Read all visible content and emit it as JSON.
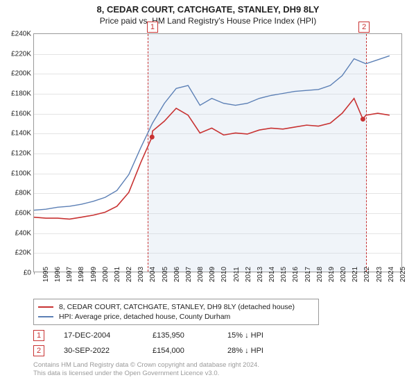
{
  "title": {
    "address": "8, CEDAR COURT, CATCHGATE, STANLEY, DH9 8LY",
    "subtitle": "Price paid vs. HM Land Registry's House Price Index (HPI)",
    "fontsize_main": 13,
    "fontsize_sub": 12
  },
  "chart": {
    "type": "line",
    "background_color": "#ffffff",
    "border_color": "#999999",
    "grid_color": "#e4e4e4",
    "shaded_fill": "rgba(200,215,235,0.28)",
    "shaded_border_color": "#c83232",
    "ylim": [
      0,
      240000
    ],
    "ytick_step": 20000,
    "y_ticks": [
      "£0",
      "£20K",
      "£40K",
      "£60K",
      "£80K",
      "£100K",
      "£120K",
      "£140K",
      "£160K",
      "£180K",
      "£200K",
      "£220K",
      "£240K"
    ],
    "xlim_years": [
      1995,
      2026
    ],
    "x_ticks": [
      1995,
      1996,
      1997,
      1998,
      1999,
      2000,
      2001,
      2002,
      2003,
      2004,
      2005,
      2006,
      2007,
      2008,
      2009,
      2010,
      2011,
      2012,
      2013,
      2014,
      2015,
      2016,
      2017,
      2018,
      2019,
      2020,
      2021,
      2022,
      2023,
      2024,
      2025
    ],
    "label_fontsize": 10,
    "series": [
      {
        "name": "property",
        "label": "8, CEDAR COURT, CATCHGATE, STANLEY, DH9 8LY (detached house)",
        "color": "#c83232",
        "line_width": 1.6,
        "points": [
          [
            1995,
            55000
          ],
          [
            1996,
            54000
          ],
          [
            1997,
            54000
          ],
          [
            1998,
            53000
          ],
          [
            1999,
            55000
          ],
          [
            2000,
            57000
          ],
          [
            2001,
            60000
          ],
          [
            2002,
            66000
          ],
          [
            2003,
            80000
          ],
          [
            2004,
            110000
          ],
          [
            2004.96,
            135950
          ],
          [
            2005,
            142000
          ],
          [
            2006,
            152000
          ],
          [
            2007,
            165000
          ],
          [
            2008,
            158000
          ],
          [
            2009,
            140000
          ],
          [
            2010,
            145000
          ],
          [
            2011,
            138000
          ],
          [
            2012,
            140000
          ],
          [
            2013,
            139000
          ],
          [
            2014,
            143000
          ],
          [
            2015,
            145000
          ],
          [
            2016,
            144000
          ],
          [
            2017,
            146000
          ],
          [
            2018,
            148000
          ],
          [
            2019,
            147000
          ],
          [
            2020,
            150000
          ],
          [
            2021,
            160000
          ],
          [
            2022,
            175000
          ],
          [
            2022.75,
            154000
          ],
          [
            2023,
            158000
          ],
          [
            2024,
            160000
          ],
          [
            2025,
            158000
          ]
        ]
      },
      {
        "name": "hpi",
        "label": "HPI: Average price, detached house, County Durham",
        "color": "#5b7fb5",
        "line_width": 1.4,
        "points": [
          [
            1995,
            62000
          ],
          [
            1996,
            63000
          ],
          [
            1997,
            65000
          ],
          [
            1998,
            66000
          ],
          [
            1999,
            68000
          ],
          [
            2000,
            71000
          ],
          [
            2001,
            75000
          ],
          [
            2002,
            82000
          ],
          [
            2003,
            98000
          ],
          [
            2004,
            125000
          ],
          [
            2005,
            150000
          ],
          [
            2006,
            170000
          ],
          [
            2007,
            185000
          ],
          [
            2008,
            188000
          ],
          [
            2009,
            168000
          ],
          [
            2010,
            175000
          ],
          [
            2011,
            170000
          ],
          [
            2012,
            168000
          ],
          [
            2013,
            170000
          ],
          [
            2014,
            175000
          ],
          [
            2015,
            178000
          ],
          [
            2016,
            180000
          ],
          [
            2017,
            182000
          ],
          [
            2018,
            183000
          ],
          [
            2019,
            184000
          ],
          [
            2020,
            188000
          ],
          [
            2021,
            198000
          ],
          [
            2022,
            215000
          ],
          [
            2023,
            210000
          ],
          [
            2024,
            214000
          ],
          [
            2025,
            218000
          ]
        ]
      }
    ],
    "markers": [
      {
        "id": "1",
        "year": 2004.96,
        "value": 135950,
        "y_position": "top"
      },
      {
        "id": "2",
        "year": 2022.75,
        "value": 154000,
        "y_position": "top"
      }
    ]
  },
  "legend": {
    "items": [
      {
        "color": "#c83232",
        "label": "8, CEDAR COURT, CATCHGATE, STANLEY, DH9 8LY (detached house)"
      },
      {
        "color": "#5b7fb5",
        "label": "HPI: Average price, detached house, County Durham"
      }
    ]
  },
  "sales": [
    {
      "marker": "1",
      "date": "17-DEC-2004",
      "price": "£135,950",
      "delta": "15% ↓ HPI"
    },
    {
      "marker": "2",
      "date": "30-SEP-2022",
      "price": "£154,000",
      "delta": "28% ↓ HPI"
    }
  ],
  "footer": {
    "line1": "Contains HM Land Registry data © Crown copyright and database right 2024.",
    "line2": "This data is licensed under the Open Government Licence v3.0."
  }
}
